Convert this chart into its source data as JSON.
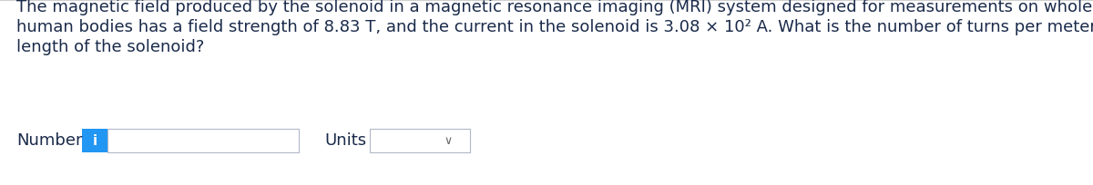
{
  "background_color": "#ffffff",
  "text_color": "#1a2a4a",
  "paragraph_line1": "The magnetic field produced by the solenoid in a magnetic resonance imaging (MRI) system designed for measurements on whole",
  "paragraph_line2": "human bodies has a field strength of 8.83 T, and the current in the solenoid is 3.08 × 10² A. What is the number of turns per meter of",
  "paragraph_line3": "length of the solenoid?",
  "number_label": "Number",
  "units_label": "Units",
  "input_box_color": "#ffffff",
  "input_box_border": "#b0b8c8",
  "info_btn_color": "#2196F3",
  "info_btn_text": "i",
  "info_btn_text_color": "#ffffff",
  "top_border_color": "#d0d0d0",
  "font_size_para": 13.0,
  "font_size_widget": 13.0,
  "fig_width": 12.0,
  "fig_height": 2.05,
  "dpi": 100
}
